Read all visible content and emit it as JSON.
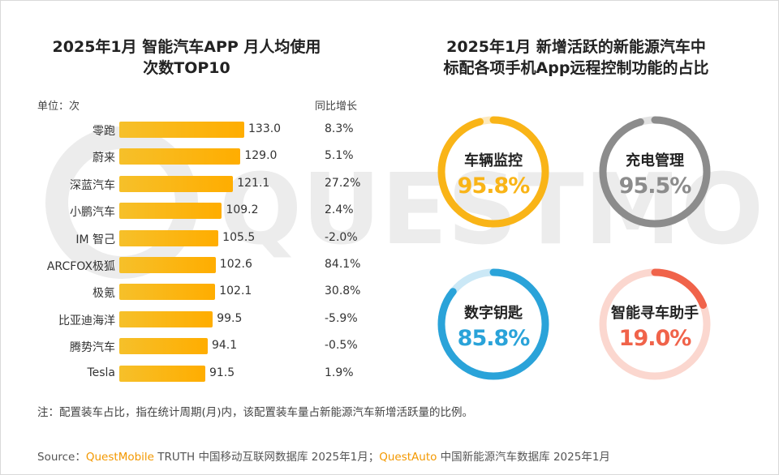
{
  "chart_data": [
    {
      "type": "bar",
      "title": "2025年1月 智能汽车APP 月人均使用次数TOP10",
      "title_lines": [
        "2025年1月 智能汽车APP 月人均使用",
        "次数TOP10"
      ],
      "unit_label": "单位：次",
      "yoy_header": "同比增长",
      "categories": [
        "零跑",
        "蔚来",
        "深蓝汽车",
        "小鹏汽车",
        "IM 智己",
        "ARCFOX极狐",
        "极氪",
        "比亚迪海洋",
        "腾势汽车",
        "Tesla"
      ],
      "values": [
        133.0,
        129.0,
        121.1,
        109.2,
        105.5,
        102.6,
        102.1,
        99.5,
        94.1,
        91.5
      ],
      "value_labels": [
        "133.0",
        "129.0",
        "121.1",
        "109.2",
        "105.5",
        "102.6",
        "102.1",
        "99.5",
        "94.1",
        "91.5"
      ],
      "yoy": [
        "8.3%",
        "5.1%",
        "27.2%",
        "2.4%",
        "-2.0%",
        "84.1%",
        "30.8%",
        "-5.9%",
        "-0.5%",
        "1.9%"
      ],
      "orientation": "horizontal",
      "bar_color": "#f9b417"
    },
    {
      "type": "pie",
      "style": "donut-gauges",
      "title": "2025年1月 新增活跃的新能源汽车中标配各项手机App远程控制功能的占比",
      "title_lines": [
        "2025年1月 新增活跃的新能源汽车中",
        "标配各项手机App远程控制功能的占比"
      ],
      "items": [
        {
          "name": "车辆监控",
          "value": 95.8,
          "label": "95.8%",
          "color": "#f9b417",
          "track": "#fde9bd"
        },
        {
          "name": "充电管理",
          "value": 95.5,
          "label": "95.5%",
          "color": "#8c8c8c",
          "track": "#e2e2e2"
        },
        {
          "name": "数字钥匙",
          "value": 85.8,
          "label": "85.8%",
          "color": "#2aa3d9",
          "track": "#cbe8f6"
        },
        {
          "name": "智能寻车助手",
          "value": 19.0,
          "label": "19.0%",
          "color": "#f0634a",
          "track": "#fbd7cf"
        }
      ]
    }
  ],
  "note": "注：配置装车占比，指在统计周期(月)内，该配置装车量占新能源汽车新增活跃量的比例。",
  "source": {
    "prefix": "Source：",
    "brand1": "QuestMobile",
    "part1": " TRUTH 中国移动互联网数据库 2025年1月；",
    "brand2": "QuestAuto",
    "part2": " 中国新能源汽车数据库 2025年1月"
  },
  "colors": {
    "brand": "#f39800"
  }
}
